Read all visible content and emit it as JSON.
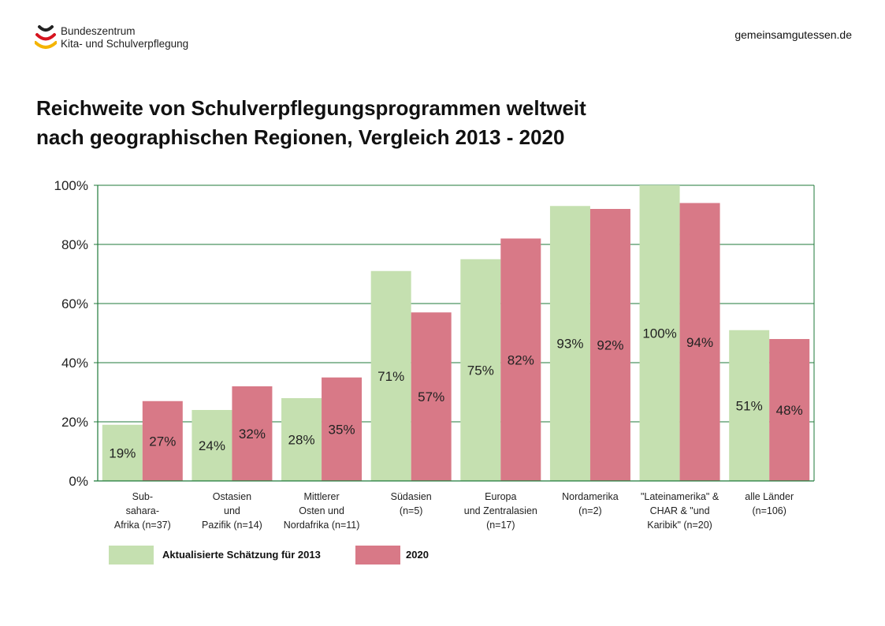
{
  "header": {
    "logo_line1": "Bundeszentrum",
    "logo_line2": "Kita- und Schulverpflegung",
    "website": "gemeinsamgutessen.de"
  },
  "title": {
    "line1": "Reichweite von Schulverpflegungsprogrammen weltweit",
    "line2": "nach geographischen Regionen, Vergleich 2013 - 2020"
  },
  "colors": {
    "series_2013": "#c5e0b0",
    "series_2020": "#d87987",
    "axis": "#1f7a3a",
    "logo_red": "#d7141f",
    "logo_yellow": "#f4b400",
    "logo_black": "#222222"
  },
  "chart_data": {
    "type": "bar",
    "categories": [
      [
        "Sub-",
        "sahara-",
        "Afrika (n=37)"
      ],
      [
        "Ostasien",
        "und",
        "Pazifik (n=14)"
      ],
      [
        "Mittlerer",
        "Osten und",
        "Nordafrika (n=11)"
      ],
      [
        "Südasien",
        "(n=5)"
      ],
      [
        "Europa",
        "und Zentralasien",
        "(n=17)"
      ],
      [
        "Nordamerika",
        "(n=2)"
      ],
      [
        "\"Lateinamerika\" &",
        "CHAR & \"und",
        "Karibik\" (n=20)"
      ],
      [
        "alle Länder",
        "(n=106)"
      ]
    ],
    "series": [
      {
        "name": "Aktualisierte Schätzung für 2013",
        "values": [
          19,
          24,
          28,
          71,
          75,
          93,
          100,
          51
        ]
      },
      {
        "name": "2020",
        "values": [
          27,
          32,
          35,
          57,
          82,
          92,
          94,
          48
        ]
      }
    ],
    "data_labels": [
      [
        "19%",
        "24%",
        "28%",
        "71%",
        "75%",
        "93%",
        "100%",
        "51%"
      ],
      [
        "27%",
        "32%",
        "35%",
        "57%",
        "82%",
        "92%",
        "94%",
        "48%"
      ]
    ],
    "yticks": [
      "0%",
      "20%",
      "40%",
      "60%",
      "80%",
      "100%"
    ],
    "ylim": [
      0,
      100
    ],
    "grid": true,
    "legend": "bottom-left"
  }
}
